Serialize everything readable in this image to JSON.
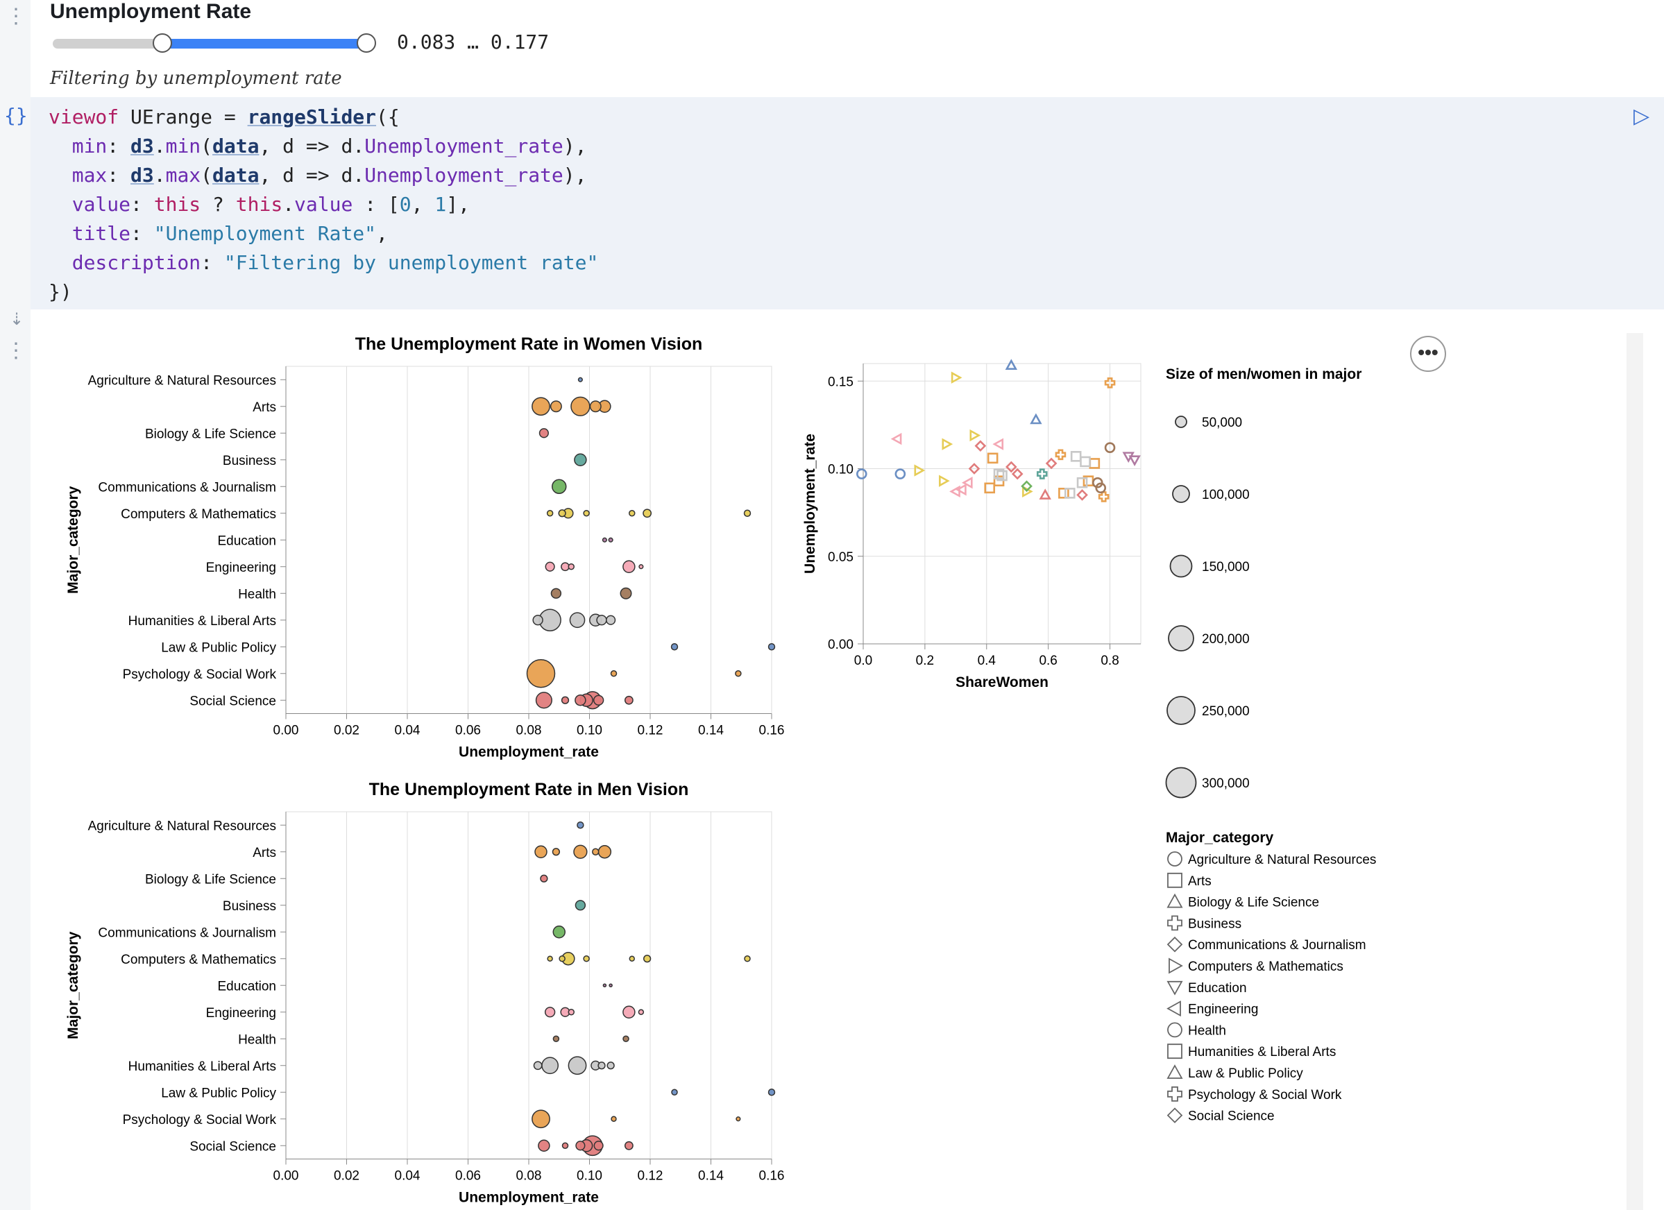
{
  "slider": {
    "title": "Unemployment Rate",
    "range_text": "0.083 … 0.177",
    "description": "Filtering by unemployment rate",
    "lower_fraction": 0.34,
    "upper_fraction": 0.97
  },
  "code": {
    "lines": [
      "viewof UErange = rangeSlider({",
      "  min: d3.min(data, d => d.Unemployment_rate),",
      "  max: d3.max(data, d => d.Unemployment_rate),",
      "  value: this ? this.value : [0, 1],",
      "  title: \"Unemployment Rate\",",
      "  description: \"Filtering by unemployment rate\"",
      "})"
    ]
  },
  "colors": {
    "Agriculture & Natural Resources": "#6b8fc4",
    "Arts": "#e8a04f",
    "Biology & Life Science": "#e07c7c",
    "Business": "#5fa59a",
    "Communications & Journalism": "#6fb35f",
    "Computers & Mathematics": "#e6cc55",
    "Education": "#b07aa1",
    "Engineering": "#f4a7b4",
    "Health": "#a0785a",
    "Humanities & Liberal Arts": "#c8c8c8",
    "Law & Public Policy": "#6b8fc4",
    "Psychology & Social Work": "#e8a04f",
    "Social Science": "#e07c7c"
  },
  "chart_data": [
    {
      "type": "scatter",
      "title": "The Unemployment Rate in Women Vision",
      "xlabel": "Unemployment_rate",
      "ylabel": "Major_category",
      "xlim": [
        0,
        0.16
      ],
      "xticks": [
        "0.00",
        "0.02",
        "0.04",
        "0.06",
        "0.08",
        "0.10",
        "0.12",
        "0.14",
        "0.16"
      ],
      "categories": [
        "Agriculture & Natural Resources",
        "Arts",
        "Biology & Life Science",
        "Business",
        "Communications & Journalism",
        "Computers & Mathematics",
        "Education",
        "Engineering",
        "Health",
        "Humanities & Liberal Arts",
        "Law & Public Policy",
        "Psychology & Social Work",
        "Social Science"
      ],
      "points": [
        {
          "cat": "Agriculture & Natural Resources",
          "x": 0.097,
          "size": 2
        },
        {
          "cat": "Arts",
          "x": 0.084,
          "size": 40
        },
        {
          "cat": "Arts",
          "x": 0.089,
          "size": 15
        },
        {
          "cat": "Arts",
          "x": 0.097,
          "size": 45
        },
        {
          "cat": "Arts",
          "x": 0.102,
          "size": 15
        },
        {
          "cat": "Arts",
          "x": 0.105,
          "size": 18
        },
        {
          "cat": "Biology & Life Science",
          "x": 0.085,
          "size": 10
        },
        {
          "cat": "Business",
          "x": 0.097,
          "size": 18
        },
        {
          "cat": "Communications & Journalism",
          "x": 0.09,
          "size": 25
        },
        {
          "cat": "Computers & Mathematics",
          "x": 0.087,
          "size": 4
        },
        {
          "cat": "Computers & Mathematics",
          "x": 0.091,
          "size": 6
        },
        {
          "cat": "Computers & Mathematics",
          "x": 0.093,
          "size": 12
        },
        {
          "cat": "Computers & Mathematics",
          "x": 0.099,
          "size": 4
        },
        {
          "cat": "Computers & Mathematics",
          "x": 0.114,
          "size": 4
        },
        {
          "cat": "Computers & Mathematics",
          "x": 0.119,
          "size": 8
        },
        {
          "cat": "Computers & Mathematics",
          "x": 0.152,
          "size": 5
        },
        {
          "cat": "Education",
          "x": 0.105,
          "size": 2
        },
        {
          "cat": "Education",
          "x": 0.107,
          "size": 2
        },
        {
          "cat": "Engineering",
          "x": 0.087,
          "size": 10
        },
        {
          "cat": "Engineering",
          "x": 0.092,
          "size": 8
        },
        {
          "cat": "Engineering",
          "x": 0.094,
          "size": 4
        },
        {
          "cat": "Engineering",
          "x": 0.113,
          "size": 18
        },
        {
          "cat": "Engineering",
          "x": 0.117,
          "size": 2
        },
        {
          "cat": "Health",
          "x": 0.089,
          "size": 12
        },
        {
          "cat": "Health",
          "x": 0.112,
          "size": 15
        },
        {
          "cat": "Humanities & Liberal Arts",
          "x": 0.083,
          "size": 12
        },
        {
          "cat": "Humanities & Liberal Arts",
          "x": 0.087,
          "size": 60
        },
        {
          "cat": "Humanities & Liberal Arts",
          "x": 0.096,
          "size": 28
        },
        {
          "cat": "Humanities & Liberal Arts",
          "x": 0.102,
          "size": 18
        },
        {
          "cat": "Humanities & Liberal Arts",
          "x": 0.104,
          "size": 12
        },
        {
          "cat": "Humanities & Liberal Arts",
          "x": 0.107,
          "size": 10
        },
        {
          "cat": "Law & Public Policy",
          "x": 0.128,
          "size": 5
        },
        {
          "cat": "Law & Public Policy",
          "x": 0.16,
          "size": 5
        },
        {
          "cat": "Psychology & Social Work",
          "x": 0.084,
          "size": 100
        },
        {
          "cat": "Psychology & Social Work",
          "x": 0.108,
          "size": 4
        },
        {
          "cat": "Psychology & Social Work",
          "x": 0.149,
          "size": 4
        },
        {
          "cat": "Social Science",
          "x": 0.085,
          "size": 32
        },
        {
          "cat": "Social Science",
          "x": 0.092,
          "size": 6
        },
        {
          "cat": "Social Science",
          "x": 0.097,
          "size": 14
        },
        {
          "cat": "Social Science",
          "x": 0.099,
          "size": 20
        },
        {
          "cat": "Social Science",
          "x": 0.101,
          "size": 38
        },
        {
          "cat": "Social Science",
          "x": 0.103,
          "size": 12
        },
        {
          "cat": "Social Science",
          "x": 0.113,
          "size": 8
        }
      ]
    },
    {
      "type": "scatter",
      "title": "The Unemployment Rate in Men Vision",
      "xlabel": "Unemployment_rate",
      "ylabel": "Major_category",
      "xlim": [
        0,
        0.16
      ],
      "xticks": [
        "0.00",
        "0.02",
        "0.04",
        "0.06",
        "0.08",
        "0.10",
        "0.12",
        "0.14",
        "0.16"
      ],
      "categories": [
        "Agriculture & Natural Resources",
        "Arts",
        "Biology & Life Science",
        "Business",
        "Communications & Journalism",
        "Computers & Mathematics",
        "Education",
        "Engineering",
        "Health",
        "Humanities & Liberal Arts",
        "Law & Public Policy",
        "Psychology & Social Work",
        "Social Science"
      ],
      "points": [
        {
          "cat": "Agriculture & Natural Resources",
          "x": 0.097,
          "size": 5
        },
        {
          "cat": "Arts",
          "x": 0.084,
          "size": 18
        },
        {
          "cat": "Arts",
          "x": 0.089,
          "size": 6
        },
        {
          "cat": "Arts",
          "x": 0.097,
          "size": 22
        },
        {
          "cat": "Arts",
          "x": 0.102,
          "size": 5
        },
        {
          "cat": "Arts",
          "x": 0.105,
          "size": 20
        },
        {
          "cat": "Biology & Life Science",
          "x": 0.085,
          "size": 6
        },
        {
          "cat": "Business",
          "x": 0.097,
          "size": 12
        },
        {
          "cat": "Communications & Journalism",
          "x": 0.09,
          "size": 18
        },
        {
          "cat": "Computers & Mathematics",
          "x": 0.087,
          "size": 3
        },
        {
          "cat": "Computers & Mathematics",
          "x": 0.091,
          "size": 4
        },
        {
          "cat": "Computers & Mathematics",
          "x": 0.093,
          "size": 20
        },
        {
          "cat": "Computers & Mathematics",
          "x": 0.099,
          "size": 4
        },
        {
          "cat": "Computers & Mathematics",
          "x": 0.114,
          "size": 3
        },
        {
          "cat": "Computers & Mathematics",
          "x": 0.119,
          "size": 6
        },
        {
          "cat": "Computers & Mathematics",
          "x": 0.152,
          "size": 4
        },
        {
          "cat": "Education",
          "x": 0.105,
          "size": 1
        },
        {
          "cat": "Education",
          "x": 0.107,
          "size": 1
        },
        {
          "cat": "Engineering",
          "x": 0.087,
          "size": 12
        },
        {
          "cat": "Engineering",
          "x": 0.092,
          "size": 10
        },
        {
          "cat": "Engineering",
          "x": 0.094,
          "size": 4
        },
        {
          "cat": "Engineering",
          "x": 0.113,
          "size": 18
        },
        {
          "cat": "Engineering",
          "x": 0.117,
          "size": 3
        },
        {
          "cat": "Health",
          "x": 0.089,
          "size": 4
        },
        {
          "cat": "Health",
          "x": 0.112,
          "size": 4
        },
        {
          "cat": "Humanities & Liberal Arts",
          "x": 0.083,
          "size": 8
        },
        {
          "cat": "Humanities & Liberal Arts",
          "x": 0.087,
          "size": 34
        },
        {
          "cat": "Humanities & Liberal Arts",
          "x": 0.096,
          "size": 40
        },
        {
          "cat": "Humanities & Liberal Arts",
          "x": 0.102,
          "size": 10
        },
        {
          "cat": "Humanities & Liberal Arts",
          "x": 0.104,
          "size": 6
        },
        {
          "cat": "Humanities & Liberal Arts",
          "x": 0.107,
          "size": 6
        },
        {
          "cat": "Law & Public Policy",
          "x": 0.128,
          "size": 4
        },
        {
          "cat": "Law & Public Policy",
          "x": 0.16,
          "size": 5
        },
        {
          "cat": "Psychology & Social Work",
          "x": 0.084,
          "size": 40
        },
        {
          "cat": "Psychology & Social Work",
          "x": 0.108,
          "size": 3
        },
        {
          "cat": "Psychology & Social Work",
          "x": 0.149,
          "size": 2
        },
        {
          "cat": "Social Science",
          "x": 0.085,
          "size": 16
        },
        {
          "cat": "Social Science",
          "x": 0.092,
          "size": 4
        },
        {
          "cat": "Social Science",
          "x": 0.097,
          "size": 10
        },
        {
          "cat": "Social Science",
          "x": 0.099,
          "size": 18
        },
        {
          "cat": "Social Science",
          "x": 0.101,
          "size": 50
        },
        {
          "cat": "Social Science",
          "x": 0.103,
          "size": 10
        },
        {
          "cat": "Social Science",
          "x": 0.113,
          "size": 8
        }
      ]
    },
    {
      "type": "scatter",
      "title": "",
      "xlabel": "ShareWomen",
      "ylabel": "Unemployment_rate",
      "xlim": [
        0,
        0.9
      ],
      "ylim": [
        0,
        0.16
      ],
      "xticks": [
        "0.0",
        "0.2",
        "0.4",
        "0.6",
        "0.8"
      ],
      "yticks": [
        "0.00",
        "0.05",
        "0.10",
        "0.15"
      ],
      "points": [
        {
          "cat": "Agriculture & Natural Resources",
          "x": -0.005,
          "y": 0.097
        },
        {
          "cat": "Agriculture & Natural Resources",
          "x": 0.12,
          "y": 0.097
        },
        {
          "cat": "Law & Public Policy",
          "x": 0.48,
          "y": 0.159
        },
        {
          "cat": "Law & Public Policy",
          "x": 0.56,
          "y": 0.128
        },
        {
          "cat": "Computers & Mathematics",
          "x": 0.3,
          "y": 0.152
        },
        {
          "cat": "Computers & Mathematics",
          "x": 0.18,
          "y": 0.099
        },
        {
          "cat": "Computers & Mathematics",
          "x": 0.26,
          "y": 0.093
        },
        {
          "cat": "Computers & Mathematics",
          "x": 0.27,
          "y": 0.114
        },
        {
          "cat": "Computers & Mathematics",
          "x": 0.36,
          "y": 0.119
        },
        {
          "cat": "Computers & Mathematics",
          "x": 0.53,
          "y": 0.087
        },
        {
          "cat": "Psychology & Social Work",
          "x": 0.8,
          "y": 0.149
        },
        {
          "cat": "Psychology & Social Work",
          "x": 0.64,
          "y": 0.108
        },
        {
          "cat": "Psychology & Social Work",
          "x": 0.78,
          "y": 0.084
        },
        {
          "cat": "Engineering",
          "x": 0.11,
          "y": 0.117
        },
        {
          "cat": "Engineering",
          "x": 0.32,
          "y": 0.088
        },
        {
          "cat": "Engineering",
          "x": 0.3,
          "y": 0.087
        },
        {
          "cat": "Engineering",
          "x": 0.44,
          "y": 0.114
        },
        {
          "cat": "Engineering",
          "x": 0.34,
          "y": 0.092
        },
        {
          "cat": "Social Science",
          "x": 0.36,
          "y": 0.1
        },
        {
          "cat": "Social Science",
          "x": 0.38,
          "y": 0.113
        },
        {
          "cat": "Social Science",
          "x": 0.48,
          "y": 0.101
        },
        {
          "cat": "Social Science",
          "x": 0.5,
          "y": 0.097
        },
        {
          "cat": "Social Science",
          "x": 0.61,
          "y": 0.103
        },
        {
          "cat": "Social Science",
          "x": 0.71,
          "y": 0.085
        },
        {
          "cat": "Biology & Life Science",
          "x": 0.59,
          "y": 0.085
        },
        {
          "cat": "Arts",
          "x": 0.42,
          "y": 0.106
        },
        {
          "cat": "Arts",
          "x": 0.41,
          "y": 0.089
        },
        {
          "cat": "Arts",
          "x": 0.44,
          "y": 0.093
        },
        {
          "cat": "Arts",
          "x": 0.65,
          "y": 0.086
        },
        {
          "cat": "Arts",
          "x": 0.73,
          "y": 0.093
        },
        {
          "cat": "Arts",
          "x": 0.75,
          "y": 0.103
        },
        {
          "cat": "Humanities & Liberal Arts",
          "x": 0.44,
          "y": 0.097
        },
        {
          "cat": "Humanities & Liberal Arts",
          "x": 0.45,
          "y": 0.096
        },
        {
          "cat": "Humanities & Liberal Arts",
          "x": 0.69,
          "y": 0.107
        },
        {
          "cat": "Humanities & Liberal Arts",
          "x": 0.72,
          "y": 0.104
        },
        {
          "cat": "Humanities & Liberal Arts",
          "x": 0.71,
          "y": 0.092
        },
        {
          "cat": "Humanities & Liberal Arts",
          "x": 0.67,
          "y": 0.086
        },
        {
          "cat": "Business",
          "x": 0.58,
          "y": 0.097
        },
        {
          "cat": "Communications & Journalism",
          "x": 0.53,
          "y": 0.09
        },
        {
          "cat": "Education",
          "x": 0.86,
          "y": 0.107
        },
        {
          "cat": "Education",
          "x": 0.88,
          "y": 0.105
        },
        {
          "cat": "Health",
          "x": 0.8,
          "y": 0.112
        },
        {
          "cat": "Health",
          "x": 0.77,
          "y": 0.089
        },
        {
          "cat": "Health",
          "x": 0.76,
          "y": 0.092
        }
      ]
    }
  ],
  "size_legend": {
    "title": "Size of men/women in major",
    "entries": [
      "50,000",
      "100,000",
      "150,000",
      "200,000",
      "250,000",
      "300,000"
    ]
  },
  "shape_legend": {
    "title": "Major_category",
    "entries": [
      {
        "label": "Agriculture & Natural Resources",
        "shape": "circle"
      },
      {
        "label": "Arts",
        "shape": "square"
      },
      {
        "label": "Biology & Life Science",
        "shape": "triangle-up"
      },
      {
        "label": "Business",
        "shape": "cross"
      },
      {
        "label": "Communications & Journalism",
        "shape": "diamond"
      },
      {
        "label": "Computers & Mathematics",
        "shape": "triangle-right"
      },
      {
        "label": "Education",
        "shape": "triangle-down"
      },
      {
        "label": "Engineering",
        "shape": "triangle-left"
      },
      {
        "label": "Health",
        "shape": "circle"
      },
      {
        "label": "Humanities & Liberal Arts",
        "shape": "square"
      },
      {
        "label": "Law & Public Policy",
        "shape": "triangle-up"
      },
      {
        "label": "Psychology & Social Work",
        "shape": "cross"
      },
      {
        "label": "Social Science",
        "shape": "diamond"
      }
    ]
  },
  "more_button_label": "•••"
}
